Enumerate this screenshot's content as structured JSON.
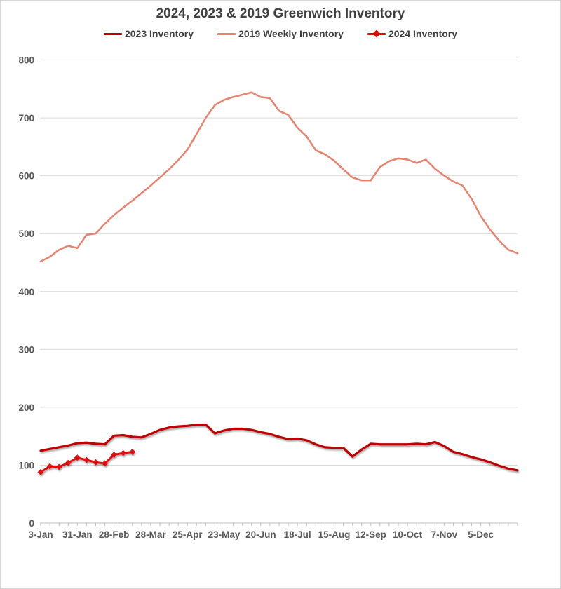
{
  "chart_data": {
    "type": "line",
    "title": "2024, 2023 & 2019 Greenwich Inventory",
    "x_axis": {
      "tick_labels": [
        "3-Jan",
        "31-Jan",
        "28-Feb",
        "28-Mar",
        "25-Apr",
        "23-May",
        "20-Jun",
        "18-Jul",
        "15-Aug",
        "12-Sep",
        "10-Oct",
        "7-Nov",
        "5-Dec"
      ],
      "weeks_between_labels": 4,
      "total_weeks": 53
    },
    "y_axis": {
      "min": 0,
      "max": 800,
      "step": 100,
      "grid": true
    },
    "legend_position": "top-center",
    "series": [
      {
        "name": "2023 Inventory",
        "color": "#c00000",
        "marker": "none",
        "values": [
          125,
          128,
          131,
          134,
          138,
          139,
          137,
          136,
          151,
          152,
          149,
          148,
          154,
          161,
          165,
          167,
          168,
          170,
          170,
          155,
          160,
          163,
          163,
          161,
          157,
          154,
          149,
          145,
          146,
          143,
          136,
          131,
          130,
          130,
          115,
          127,
          137,
          136,
          136,
          136,
          136,
          137,
          136,
          140,
          133,
          123,
          119,
          114,
          110,
          105,
          99,
          94,
          91
        ]
      },
      {
        "name": "2019 Weekly Inventory",
        "color": "#e8826d",
        "marker": "none",
        "values": [
          452,
          460,
          472,
          479,
          475,
          498,
          500,
          517,
          532,
          545,
          557,
          570,
          583,
          597,
          611,
          627,
          645,
          672,
          700,
          722,
          731,
          736,
          740,
          744,
          736,
          734,
          712,
          705,
          683,
          668,
          644,
          637,
          626,
          611,
          597,
          592,
          592,
          615,
          625,
          630,
          628,
          622,
          628,
          612,
          600,
          590,
          583,
          560,
          530,
          507,
          488,
          472,
          466
        ]
      },
      {
        "name": "2024 Inventory",
        "color": "#e00b0b",
        "marker": "diamond",
        "values": [
          88,
          98,
          97,
          104,
          113,
          109,
          105,
          103,
          118,
          121,
          123
        ]
      }
    ],
    "colors": {
      "title_text": "#404040",
      "tick_text": "#595959",
      "gridline": "#d9d9d9",
      "axis_line": "#bfbfbf",
      "background": "#ffffff"
    }
  }
}
